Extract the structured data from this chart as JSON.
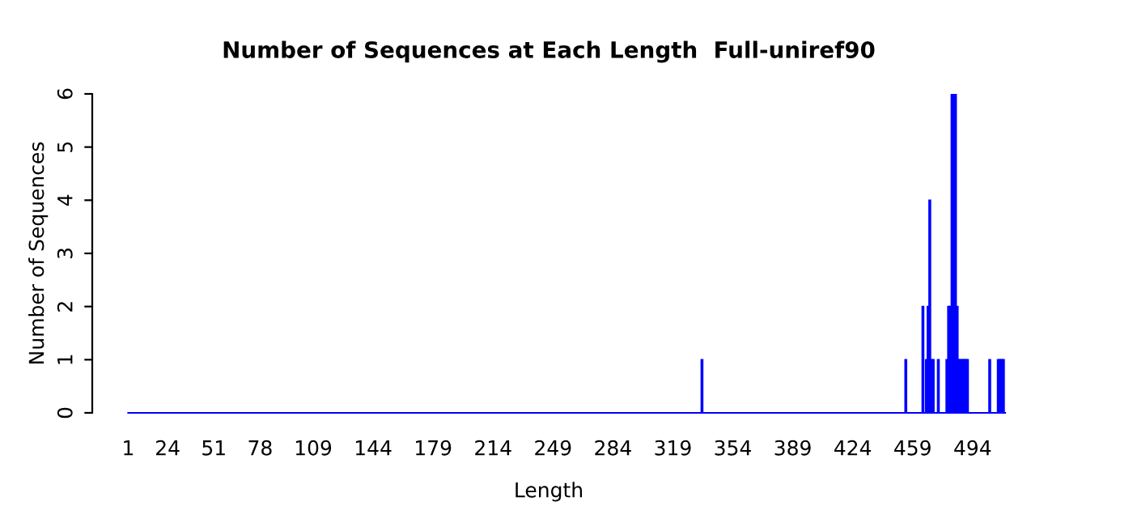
{
  "chart_data": {
    "type": "bar",
    "title": "Number of Sequences at Each Length  Full-uniref90",
    "xlabel": "Length",
    "ylabel": "Number of Sequences",
    "x": [
      336,
      455,
      465,
      467,
      468,
      469,
      470,
      471,
      474,
      479,
      480,
      481,
      482,
      483,
      484,
      485,
      486,
      487,
      488,
      489,
      490,
      491,
      504,
      509,
      510,
      511,
      512
    ],
    "values": [
      1,
      1,
      2,
      1,
      2,
      4,
      1,
      1,
      1,
      1,
      2,
      2,
      6,
      6,
      6,
      2,
      1,
      1,
      1,
      1,
      1,
      1,
      1,
      1,
      1,
      1,
      1
    ],
    "color": "#0000ff",
    "xlim": [
      -20,
      513
    ],
    "xticks": [
      1,
      24,
      51,
      78,
      109,
      144,
      179,
      214,
      249,
      284,
      319,
      354,
      389,
      424,
      459,
      494
    ],
    "ylim": [
      0,
      6
    ],
    "yticks": [
      0,
      1,
      2,
      3,
      4,
      5,
      6
    ],
    "grid": false,
    "legend": false
  }
}
